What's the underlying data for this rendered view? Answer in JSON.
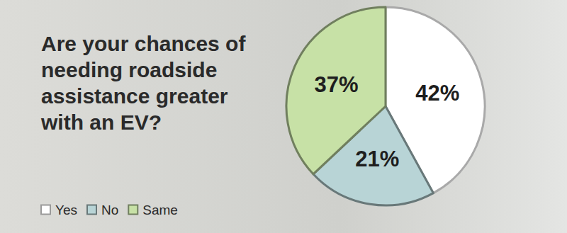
{
  "chart_data": {
    "type": "pie",
    "title": "Are your chances of needing roadside assistance greater with an EV?",
    "categories": [
      "Yes",
      "No",
      "Same"
    ],
    "values": [
      42,
      21,
      37
    ],
    "value_labels": [
      "42%",
      "21%",
      "37%"
    ],
    "colors": [
      "#ffffff",
      "#b8d4d6",
      "#c7e1a6"
    ],
    "data_labels": true,
    "legend": "bottom-left"
  }
}
